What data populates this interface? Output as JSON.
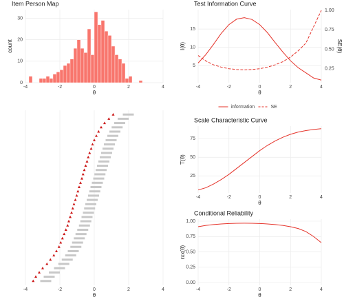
{
  "chart_data": [
    {
      "type": "histogram",
      "title": "Item Person Map",
      "xlabel": "θ",
      "ylabel": "count",
      "color": "#f8766d",
      "grid": true,
      "bins": [
        -3.8,
        -3.6,
        -3.4,
        -3.2,
        -3.0,
        -2.8,
        -2.6,
        -2.4,
        -2.2,
        -2.0,
        -1.8,
        -1.6,
        -1.4,
        -1.2,
        -1.0,
        -0.8,
        -0.6,
        -0.4,
        -0.2,
        0.0,
        0.2,
        0.4,
        0.6,
        0.8,
        1.0,
        1.2,
        1.4,
        1.6,
        1.8,
        2.0,
        2.2,
        2.4,
        2.6,
        2.8
      ],
      "values": [
        3,
        0,
        0,
        2,
        2,
        3,
        2,
        4,
        5,
        6,
        8,
        9,
        11,
        16,
        20,
        16,
        14,
        25,
        13,
        33,
        27,
        29,
        24,
        22,
        17,
        13,
        11,
        9,
        2,
        3,
        0,
        0,
        1
      ],
      "xlim": [
        -4,
        4
      ],
      "xticks": [
        -4,
        -2,
        0,
        2,
        4
      ],
      "ylim": [
        0,
        34
      ],
      "yticks": [
        0,
        10,
        20,
        30
      ]
    },
    {
      "type": "line",
      "title": "Test Information Curve",
      "xlabel": "θ",
      "ylabel": "I(θ)",
      "y2label": "SE(θ)",
      "grid": true,
      "legend": "bottom",
      "x": [
        -4,
        -3.5,
        -3,
        -2.5,
        -2,
        -1.5,
        -1,
        -0.5,
        0,
        0.5,
        1,
        1.5,
        2,
        2.5,
        3,
        3.5,
        4
      ],
      "series": [
        {
          "name": "information",
          "color": "#e5332a",
          "values": [
            5.7,
            8,
            10.8,
            13.8,
            16.2,
            17.7,
            18.1,
            17.6,
            16.2,
            14.0,
            11.3,
            8.7,
            6.3,
            4.4,
            3.0,
            1.6,
            1.0
          ]
        },
        {
          "name": "SE",
          "color": "#e5332a",
          "dash": true,
          "axis": "y2",
          "values": [
            0.42,
            0.35,
            0.3,
            0.27,
            0.25,
            0.24,
            0.235,
            0.24,
            0.25,
            0.27,
            0.3,
            0.34,
            0.4,
            0.48,
            0.58,
            0.79,
            1.0
          ]
        }
      ],
      "xlim": [
        -4,
        4
      ],
      "xticks": [
        -4,
        -2,
        0,
        2,
        4
      ],
      "ylim": [
        0.3,
        20.3
      ],
      "yticks": [
        5,
        10,
        15
      ],
      "y2lim": [
        0.07,
        1.01
      ],
      "y2ticks": [
        {
          "value": 0.25,
          "label": "0.25"
        },
        {
          "value": 0.5,
          "label": "0.50"
        },
        {
          "value": 0.75,
          "label": "0.75"
        },
        {
          "value": 1,
          "label": "1.00"
        }
      ]
    },
    {
      "type": "scatter",
      "xlabel": "θ",
      "grid": true,
      "series": [
        {
          "color": "#cc1a1a",
          "marker": "triangle",
          "x": [
            -3.55,
            -3.4,
            -3.2,
            -3.0,
            -2.75,
            -2.55,
            -2.35,
            -2.2,
            -2.05,
            -1.95,
            -1.85,
            -1.75,
            -1.65,
            -1.55,
            -1.48,
            -1.4,
            -1.32,
            -1.25,
            -1.18,
            -1.1,
            -1.02,
            -0.95,
            -0.88,
            -0.8,
            -0.72,
            -0.65,
            -0.58,
            -0.5,
            -0.42,
            -0.35,
            -0.27,
            -0.18,
            -0.1,
            0.0,
            0.12,
            0.25,
            0.4,
            0.6,
            0.85,
            1.1
          ],
          "values": [
            1,
            2,
            3,
            4,
            5,
            6,
            7,
            8,
            9,
            10,
            11,
            12,
            13,
            14,
            15,
            16,
            17,
            18,
            19,
            20,
            21,
            22,
            23,
            24,
            25,
            26,
            27,
            28,
            29,
            30,
            31,
            32,
            33,
            34,
            35,
            36,
            37,
            38,
            39,
            40
          ]
        },
        {
          "color": "#c8c8c8",
          "marker": "label",
          "x": [
            -3.1,
            -2.9,
            -2.6,
            -2.3,
            -2.05,
            -1.85,
            -1.65,
            -1.5,
            -1.35,
            -1.25,
            -1.15,
            -1.05,
            -0.95,
            -0.85,
            -0.77,
            -0.7,
            -0.62,
            -0.55,
            -0.48,
            -0.4,
            -0.32,
            -0.25,
            -0.18,
            -0.1,
            -0.02,
            0.05,
            0.12,
            0.2,
            0.28,
            0.36,
            0.44,
            0.52,
            0.6,
            0.7,
            0.8,
            0.92,
            1.05,
            1.2,
            1.4,
            1.7
          ],
          "values": [
            1,
            2,
            3,
            4,
            5,
            6,
            7,
            8,
            9,
            10,
            11,
            12,
            13,
            14,
            15,
            16,
            17,
            18,
            19,
            20,
            21,
            22,
            23,
            24,
            25,
            26,
            27,
            28,
            29,
            30,
            31,
            32,
            33,
            34,
            35,
            36,
            37,
            38,
            39,
            40
          ]
        }
      ],
      "xlim": [
        -4,
        4
      ],
      "xticks": [
        -4,
        -2,
        0,
        2,
        4
      ],
      "ylim": [
        0,
        41
      ]
    },
    {
      "type": "line",
      "title": "Scale Characteristic Curve",
      "xlabel": "θ",
      "ylabel": "T(θ)",
      "grid": true,
      "x": [
        -4,
        -3.5,
        -3,
        -2.5,
        -2,
        -1.5,
        -1,
        -0.5,
        0,
        0.5,
        1,
        1.5,
        2,
        2.5,
        3,
        3.5,
        4
      ],
      "series": [
        {
          "color": "#e5332a",
          "values": [
            6,
            9,
            14,
            20,
            27,
            35,
            43,
            51,
            59,
            66,
            72,
            77,
            81,
            84,
            86,
            87.5,
            88.5
          ]
        }
      ],
      "xlim": [
        -4,
        4
      ],
      "xticks": [
        -4,
        -2,
        0,
        2,
        4
      ],
      "ylim": [
        2,
        92
      ],
      "yticks": [
        25,
        50,
        75
      ]
    },
    {
      "type": "line",
      "title": "Conditional Reliability",
      "xlabel": "θ",
      "ylabel": "rxx(θ)",
      "grid": true,
      "x": [
        -4,
        -3.5,
        -3,
        -2.5,
        -2,
        -1.5,
        -1,
        -0.5,
        0,
        0.5,
        1,
        1.5,
        2,
        2.5,
        3,
        3.5,
        4
      ],
      "series": [
        {
          "color": "#e5332a",
          "values": [
            0.91,
            0.93,
            0.945,
            0.955,
            0.962,
            0.966,
            0.967,
            0.966,
            0.962,
            0.955,
            0.945,
            0.93,
            0.91,
            0.88,
            0.83,
            0.75,
            0.65
          ]
        }
      ],
      "xlim": [
        -4,
        4
      ],
      "xticks": [
        -4,
        -2,
        0,
        2,
        4
      ],
      "ylim": [
        -0.044,
        1.033
      ],
      "yticks": [
        {
          "value": 0,
          "label": "0.00"
        },
        {
          "value": 0.25,
          "label": "0.25"
        },
        {
          "value": 0.5,
          "label": "0.50"
        },
        {
          "value": 0.75,
          "label": "0.75"
        },
        {
          "value": 1,
          "label": "1.00"
        }
      ]
    }
  ]
}
